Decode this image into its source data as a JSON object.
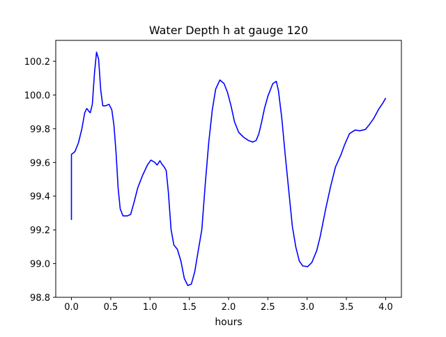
{
  "chart_data": {
    "type": "line",
    "title": "Water Depth h at gauge 120",
    "xlabel": "hours",
    "ylabel": "",
    "xlim": [
      -0.2,
      4.2
    ],
    "ylim": [
      98.8,
      100.324
    ],
    "grid": false,
    "xticks": [
      0.0,
      0.5,
      1.0,
      1.5,
      2.0,
      2.5,
      3.0,
      3.5,
      4.0
    ],
    "xtick_labels": [
      "0.0",
      "0.5",
      "1.0",
      "1.5",
      "2.0",
      "2.5",
      "3.0",
      "3.5",
      "4.0"
    ],
    "yticks": [
      98.8,
      99.0,
      99.2,
      99.4,
      99.6,
      99.8,
      100.0,
      100.2
    ],
    "ytick_labels": [
      "98.8",
      "99.0",
      "99.2",
      "99.4",
      "99.6",
      "99.8",
      "100.0",
      "100.2"
    ],
    "series": [
      {
        "name": "h",
        "color": "#0000ff",
        "x": [
          0,
          0,
          0.044,
          0.089,
          0.133,
          0.169,
          0.195,
          0.222,
          0.239,
          0.266,
          0.293,
          0.319,
          0.346,
          0.373,
          0.399,
          0.435,
          0.479,
          0.514,
          0.541,
          0.568,
          0.594,
          0.621,
          0.656,
          0.71,
          0.754,
          0.798,
          0.843,
          0.905,
          0.967,
          1.011,
          1.056,
          1.091,
          1.126,
          1.153,
          1.18,
          1.206,
          1.233,
          1.268,
          1.304,
          1.348,
          1.393,
          1.437,
          1.481,
          1.526,
          1.57,
          1.614,
          1.659,
          1.703,
          1.747,
          1.792,
          1.836,
          1.889,
          1.942,
          1.987,
          2.031,
          2.075,
          2.129,
          2.191,
          2.253,
          2.306,
          2.35,
          2.386,
          2.421,
          2.457,
          2.501,
          2.563,
          2.608,
          2.634,
          2.678,
          2.723,
          2.767,
          2.812,
          2.856,
          2.9,
          2.945,
          3.007,
          3.06,
          3.122,
          3.166,
          3.237,
          3.299,
          3.361,
          3.432,
          3.477,
          3.539,
          3.61,
          3.672,
          3.743,
          3.787,
          3.849,
          3.911,
          3.965,
          4.0
        ],
        "y": [
          99.259,
          99.647,
          99.664,
          99.717,
          99.8,
          99.895,
          99.92,
          99.903,
          99.895,
          99.945,
          100.13,
          100.254,
          100.213,
          100.027,
          99.936,
          99.936,
          99.945,
          99.911,
          99.821,
          99.655,
          99.449,
          99.325,
          99.283,
          99.283,
          99.292,
          99.366,
          99.449,
          99.523,
          99.585,
          99.614,
          99.602,
          99.585,
          99.61,
          99.589,
          99.573,
          99.552,
          99.428,
          99.201,
          99.11,
          99.085,
          99.015,
          98.912,
          98.87,
          98.879,
          98.953,
          99.077,
          99.201,
          99.469,
          99.717,
          99.911,
          100.035,
          100.089,
          100.068,
          100.015,
          99.936,
          99.841,
          99.779,
          99.75,
          99.73,
          99.721,
          99.73,
          99.771,
          99.841,
          99.92,
          99.994,
          100.068,
          100.081,
          100.027,
          99.862,
          99.635,
          99.428,
          99.221,
          99.098,
          99.015,
          98.986,
          98.982,
          99.007,
          99.077,
          99.159,
          99.325,
          99.457,
          99.573,
          99.647,
          99.705,
          99.771,
          99.792,
          99.788,
          99.796,
          99.821,
          99.862,
          99.916,
          99.953,
          99.982
        ]
      }
    ]
  }
}
